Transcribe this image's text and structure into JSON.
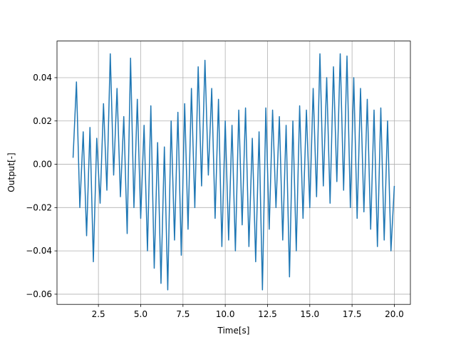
{
  "chart_data": {
    "type": "line",
    "xlabel": "Time[s]",
    "ylabel": "Output[-]",
    "xlim": [
      0.05,
      20.95
    ],
    "ylim": [
      -0.0647,
      0.0569
    ],
    "xticks": [
      2.5,
      {
        "value": 5,
        "label": "5.0"
      },
      7.5,
      {
        "value": 10,
        "label": "10.0"
      },
      12.5,
      {
        "value": 15,
        "label": "15.0"
      },
      17.5,
      {
        "value": 20,
        "label": "20.0"
      }
    ],
    "yticks": [
      {
        "value": -0.06,
        "label": "−0.06"
      },
      {
        "value": -0.04,
        "label": "−0.04"
      },
      {
        "value": -0.02,
        "label": "−0.02"
      },
      {
        "value": 0,
        "label": "0.00"
      },
      {
        "value": 0.02,
        "label": "0.02"
      },
      {
        "value": 0.04,
        "label": "0.04"
      }
    ],
    "grid": true,
    "x": [
      1.0,
      1.2,
      1.4,
      1.6,
      1.8,
      2.0,
      2.2,
      2.4,
      2.6,
      2.8,
      3.0,
      3.2,
      3.4,
      3.6,
      3.8,
      4.0,
      4.2,
      4.4,
      4.6,
      4.8,
      5.0,
      5.2,
      5.4,
      5.6,
      5.8,
      6.0,
      6.2,
      6.4,
      6.6,
      6.8,
      7.0,
      7.2,
      7.4,
      7.6,
      7.8,
      8.0,
      8.2,
      8.4,
      8.6,
      8.8,
      9.0,
      9.2,
      9.4,
      9.6,
      9.8,
      10.0,
      10.2,
      10.4,
      10.6,
      10.8,
      11.0,
      11.2,
      11.4,
      11.6,
      11.8,
      12.0,
      12.2,
      12.4,
      12.6,
      12.8,
      13.0,
      13.2,
      13.4,
      13.6,
      13.8,
      14.0,
      14.2,
      14.4,
      14.6,
      14.8,
      15.0,
      15.2,
      15.4,
      15.6,
      15.8,
      16.0,
      16.2,
      16.4,
      16.6,
      16.8,
      17.0,
      17.2,
      17.4,
      17.6,
      17.8,
      18.0,
      18.2,
      18.4,
      18.6,
      18.8,
      19.0,
      19.2,
      19.4,
      19.6,
      19.8,
      20.0
    ],
    "series": [
      {
        "color": "#1f77b4",
        "values": [
          0.003,
          0.038,
          -0.02,
          0.015,
          -0.033,
          0.017,
          -0.045,
          0.012,
          -0.018,
          0.028,
          -0.012,
          0.051,
          -0.005,
          0.035,
          -0.015,
          0.022,
          -0.032,
          0.049,
          -0.02,
          0.03,
          -0.025,
          0.018,
          -0.04,
          0.027,
          -0.048,
          0.01,
          -0.055,
          0.008,
          -0.058,
          0.02,
          -0.035,
          0.024,
          -0.042,
          0.028,
          -0.03,
          0.035,
          -0.02,
          0.045,
          -0.01,
          0.048,
          -0.005,
          0.035,
          -0.025,
          0.03,
          -0.038,
          0.02,
          -0.035,
          0.018,
          -0.04,
          0.025,
          -0.028,
          0.026,
          -0.038,
          0.012,
          -0.045,
          0.015,
          -0.058,
          0.026,
          -0.03,
          0.025,
          -0.02,
          0.022,
          -0.035,
          0.018,
          -0.052,
          0.02,
          -0.04,
          0.027,
          -0.025,
          0.025,
          -0.02,
          0.035,
          -0.015,
          0.051,
          -0.01,
          0.04,
          -0.018,
          0.045,
          -0.008,
          0.051,
          -0.012,
          0.05,
          -0.02,
          0.04,
          -0.025,
          0.035,
          -0.022,
          0.03,
          -0.03,
          0.025,
          -0.038,
          0.026,
          -0.035,
          0.02,
          -0.04,
          -0.01
        ]
      }
    ]
  }
}
